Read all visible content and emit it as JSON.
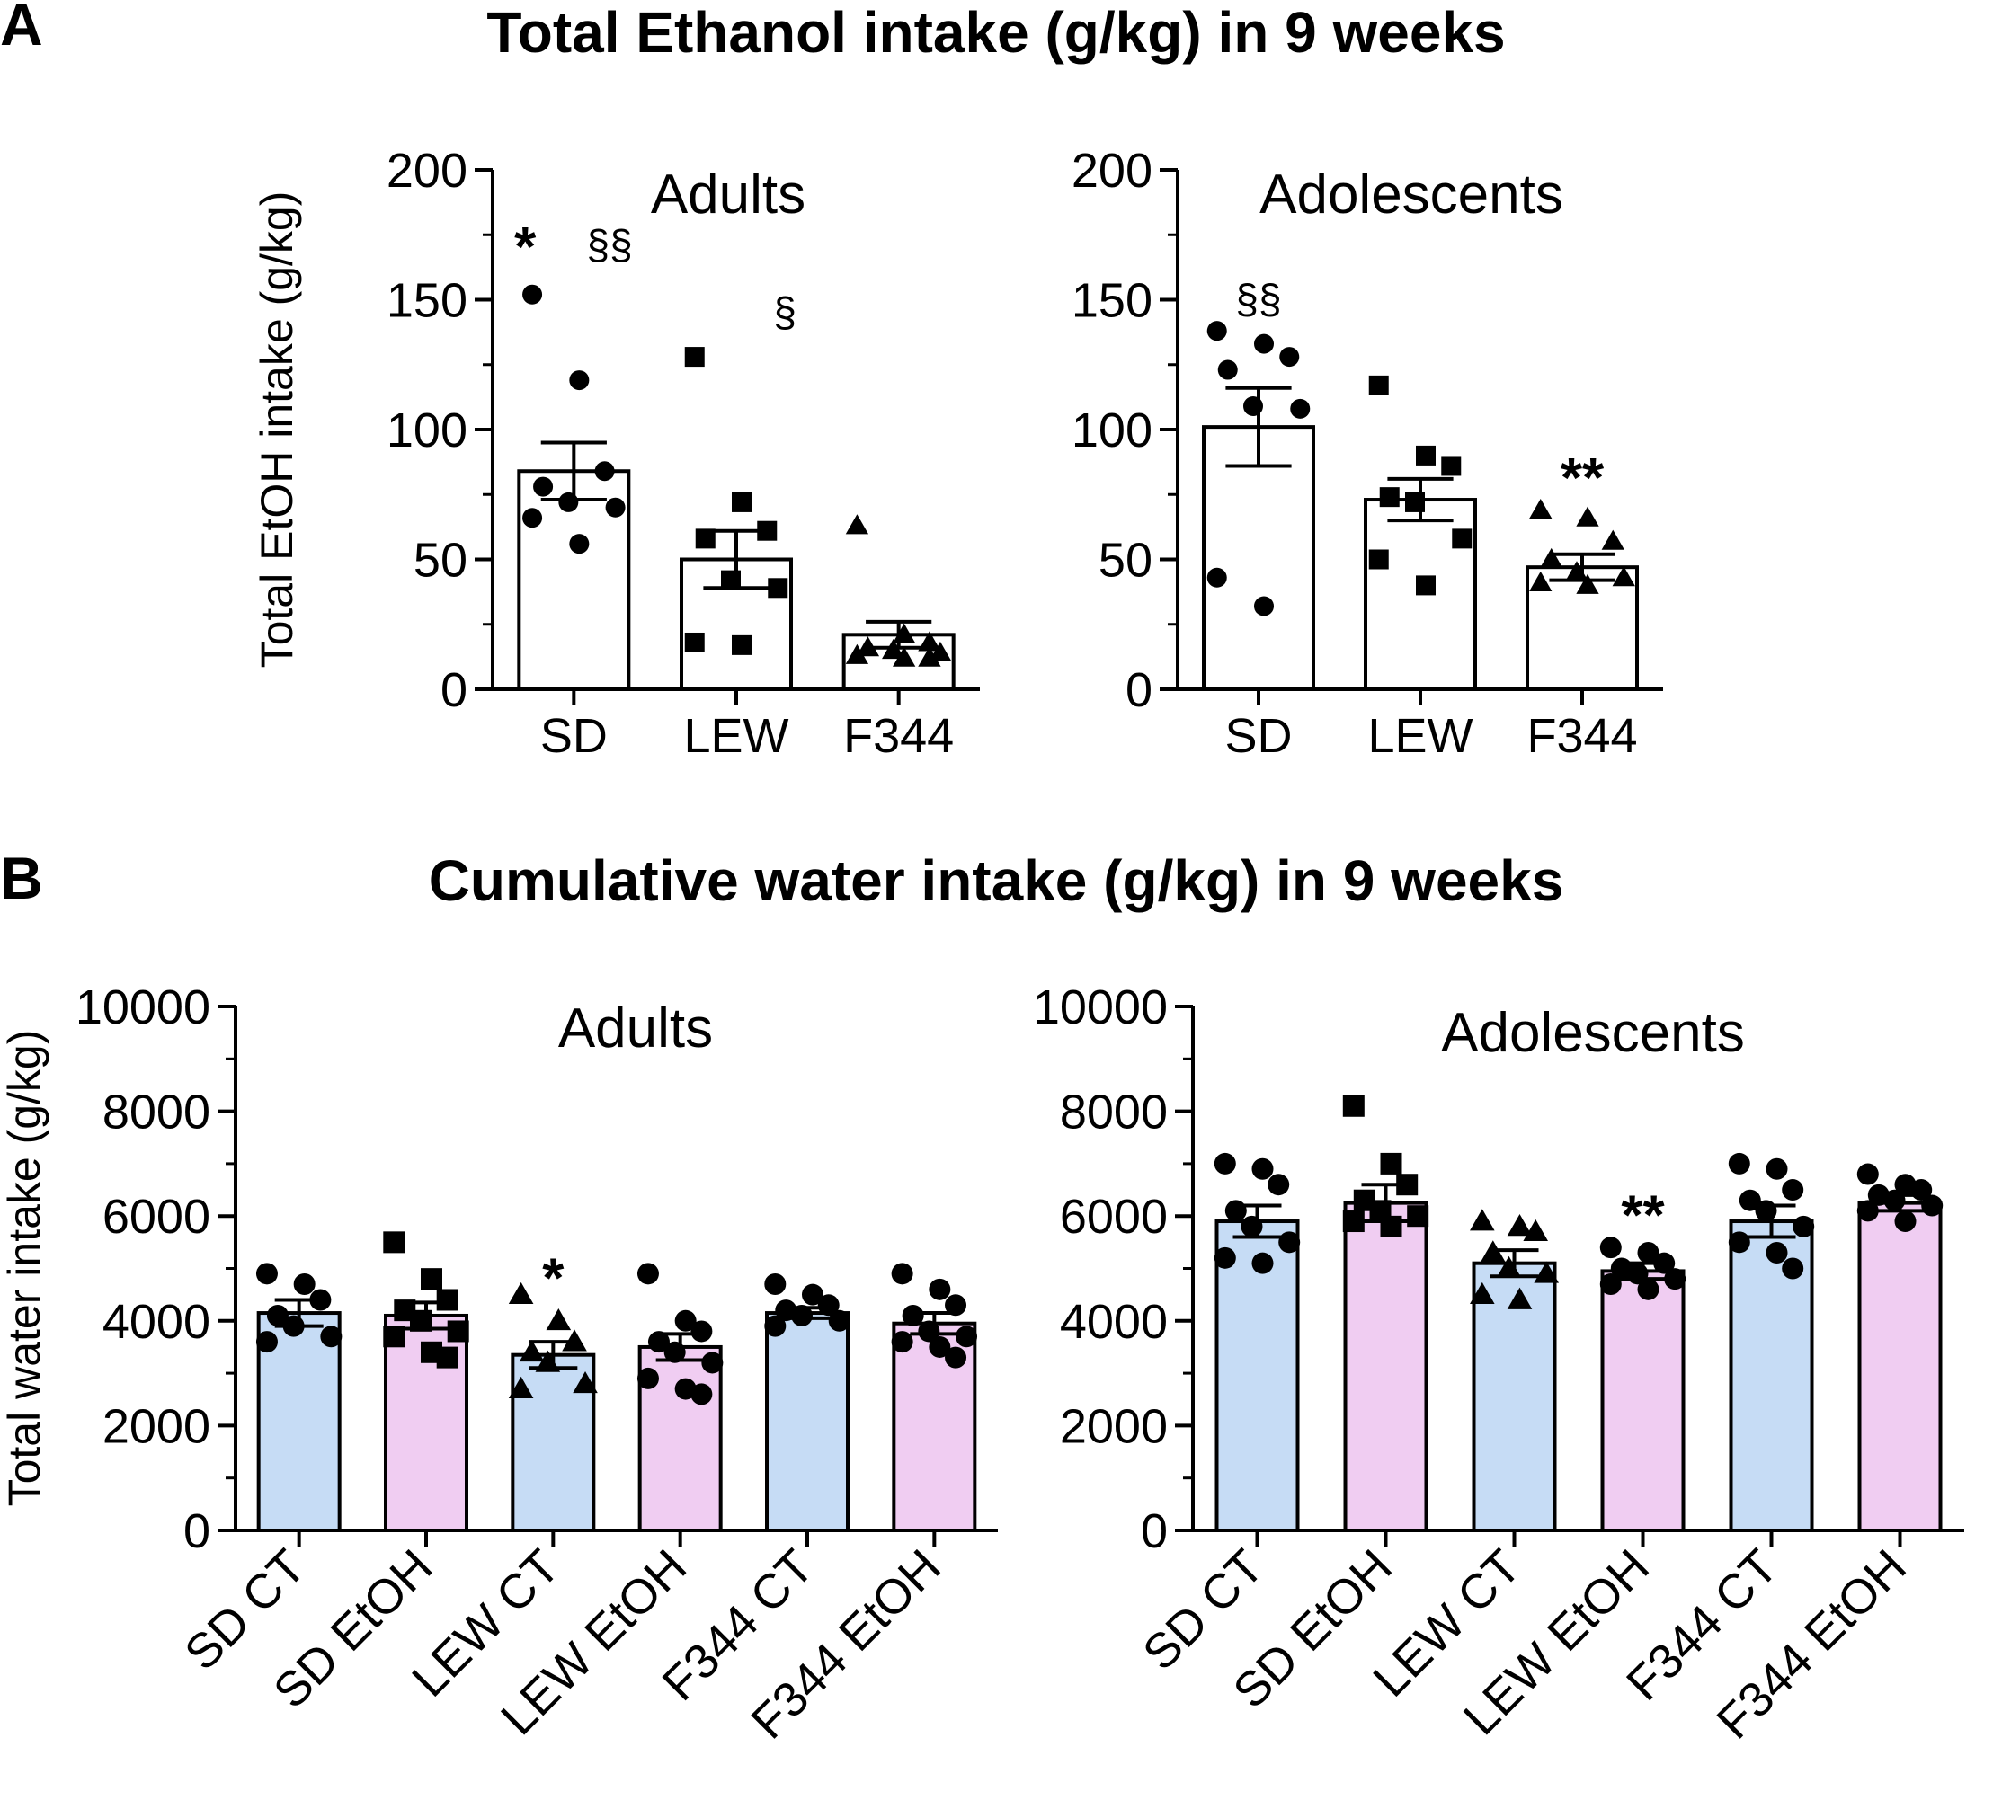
{
  "figure": {
    "panels": [
      {
        "letter": "A",
        "title": "Total Ethanol intake (g/kg) in 9 weeks"
      },
      {
        "letter": "B",
        "title": "Cumulative water intake (g/kg) in 9 weeks"
      }
    ]
  },
  "colors": {
    "bar_default": "#ffffff",
    "bar_ct": "#c6dcf5",
    "bar_etoh": "#f0cdf2",
    "ink": "#000000"
  },
  "chart_data": [
    {
      "id": "A-adults",
      "type": "bar",
      "title": "Adults",
      "panel": "A",
      "ylabel": "Total EtOH intake (g/kg)",
      "ylim": [
        0,
        200
      ],
      "yticks": [
        0,
        50,
        100,
        150,
        200
      ],
      "categories": [
        "SD",
        "LEW",
        "F344"
      ],
      "values": [
        84,
        50,
        21
      ],
      "sem": [
        11,
        11,
        5
      ],
      "markers": [
        "circle",
        "square",
        "triangle"
      ],
      "fills": [
        "bar_default",
        "bar_default",
        "bar_default"
      ],
      "points": [
        [
          152,
          119,
          84,
          78,
          72,
          70,
          66,
          56
        ],
        [
          128,
          72,
          61,
          58,
          42,
          39,
          18,
          17
        ],
        [
          63,
          21,
          18,
          16,
          15,
          14,
          13,
          12,
          12
        ]
      ],
      "annotations": [
        {
          "cat": 0,
          "y": 172,
          "text": "*",
          "bold": true,
          "dx": -0.3
        },
        {
          "cat": 0,
          "y": 172,
          "text": "§§",
          "bold": false,
          "dx": 0.22
        },
        {
          "cat": 1,
          "y": 146,
          "text": "§",
          "bold": false,
          "dx": 0.3
        }
      ]
    },
    {
      "id": "A-adolescents",
      "type": "bar",
      "title": "Adolescents",
      "panel": "A",
      "ylabel": "",
      "ylim": [
        0,
        200
      ],
      "yticks": [
        0,
        50,
        100,
        150,
        200
      ],
      "categories": [
        "SD",
        "LEW",
        "F344"
      ],
      "values": [
        101,
        73,
        47
      ],
      "sem": [
        15,
        8,
        5
      ],
      "markers": [
        "circle",
        "square",
        "triangle"
      ],
      "fills": [
        "bar_default",
        "bar_default",
        "bar_default"
      ],
      "points": [
        [
          138,
          133,
          128,
          123,
          109,
          108,
          43,
          32
        ],
        [
          117,
          90,
          86,
          74,
          72,
          58,
          50,
          40
        ],
        [
          69,
          66,
          57,
          50,
          45,
          43,
          41,
          40
        ]
      ],
      "annotations": [
        {
          "cat": 0,
          "y": 151,
          "text": "§§",
          "bold": false,
          "dx": 0
        },
        {
          "cat": 2,
          "y": 83,
          "text": "**",
          "bold": true,
          "dx": 0
        }
      ]
    },
    {
      "id": "B-adults",
      "type": "bar",
      "title": "Adults",
      "panel": "B",
      "ylabel": "Total water intake (g/kg)",
      "ylim": [
        0,
        10000
      ],
      "yticks": [
        0,
        2000,
        4000,
        6000,
        8000,
        10000
      ],
      "categories": [
        "SD CT",
        "SD EtOH",
        "LEW CT",
        "LEW EtOH",
        "F344 CT",
        "F344 EtOH"
      ],
      "values": [
        4150,
        4100,
        3350,
        3500,
        4150,
        3950
      ],
      "sem": [
        250,
        250,
        250,
        250,
        100,
        200
      ],
      "markers": [
        "circle",
        "square",
        "triangle",
        "circle",
        "circle",
        "circle"
      ],
      "fills": [
        "bar_ct",
        "bar_etoh",
        "bar_ct",
        "bar_etoh",
        "bar_ct",
        "bar_etoh"
      ],
      "points": [
        [
          4900,
          4700,
          4400,
          4100,
          3900,
          3700,
          3600
        ],
        [
          5500,
          4800,
          4400,
          4200,
          4000,
          3800,
          3700,
          3400,
          3300
        ],
        [
          4500,
          4000,
          3600,
          3400,
          3200,
          2800,
          2700
        ],
        [
          4900,
          4000,
          3800,
          3600,
          3400,
          3200,
          2900,
          2700,
          2600
        ],
        [
          4700,
          4500,
          4300,
          4200,
          4100,
          4000,
          3900
        ],
        [
          4900,
          4600,
          4300,
          4100,
          3800,
          3700,
          3600,
          3500,
          3300
        ]
      ],
      "annotations": [
        {
          "cat": 2,
          "y": 4900,
          "text": "*",
          "bold": true,
          "dx": 0
        }
      ]
    },
    {
      "id": "B-adolescents",
      "type": "bar",
      "title": "Adolescents",
      "panel": "B",
      "ylabel": "",
      "ylim": [
        0,
        10000
      ],
      "yticks": [
        0,
        2000,
        4000,
        6000,
        8000,
        10000
      ],
      "categories": [
        "SD CT",
        "SD EtOH",
        "LEW CT",
        "LEW EtOH",
        "F344 CT",
        "F344 EtOH"
      ],
      "values": [
        5900,
        6250,
        5100,
        4950,
        5900,
        6250
      ],
      "sem": [
        300,
        350,
        250,
        150,
        300,
        150
      ],
      "markers": [
        "circle",
        "square",
        "triangle",
        "circle",
        "circle",
        "circle"
      ],
      "fills": [
        "bar_ct",
        "bar_etoh",
        "bar_ct",
        "bar_etoh",
        "bar_ct",
        "bar_etoh"
      ],
      "points": [
        [
          7000,
          6900,
          6600,
          6100,
          5800,
          5500,
          5200,
          5100
        ],
        [
          8100,
          7000,
          6600,
          6300,
          6100,
          6000,
          5900,
          5800
        ],
        [
          5900,
          5800,
          5700,
          5300,
          5000,
          4900,
          4500,
          4400
        ],
        [
          5400,
          5300,
          5100,
          5000,
          4900,
          4800,
          4700,
          4600
        ],
        [
          7000,
          6900,
          6500,
          6300,
          6100,
          5800,
          5500,
          5300,
          5000
        ],
        [
          6800,
          6600,
          6500,
          6400,
          6300,
          6200,
          6100,
          5900
        ]
      ],
      "annotations": [
        {
          "cat": 3,
          "y": 6100,
          "text": "**",
          "bold": true,
          "dx": 0
        }
      ]
    }
  ]
}
